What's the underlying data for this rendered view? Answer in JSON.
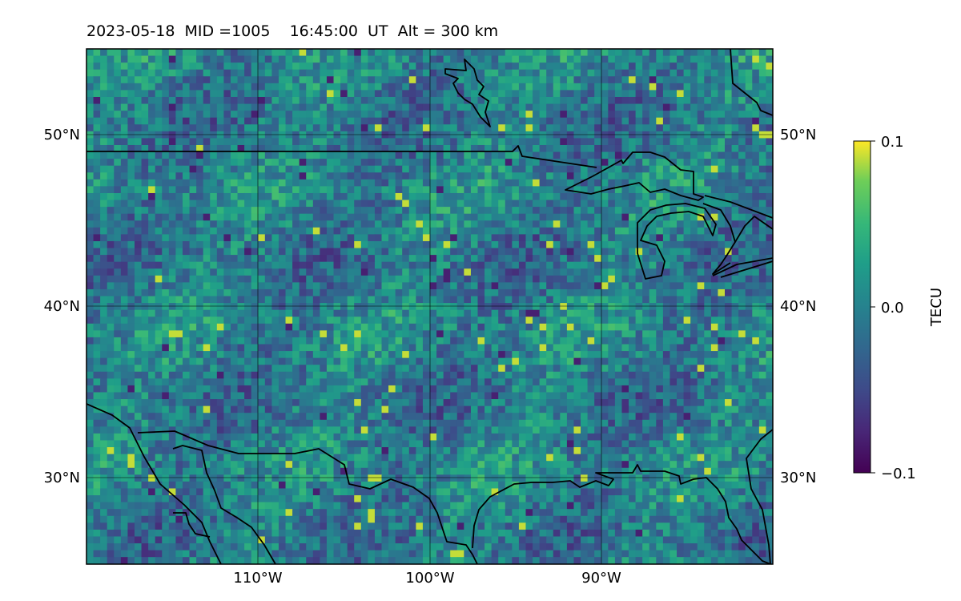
{
  "header": {
    "title": "2023-05-18  MID =1005    16:45:00  UT  Alt = 300 km"
  },
  "map": {
    "lon_range": [
      -120,
      -80
    ],
    "lat_range": [
      25,
      55
    ],
    "lat_labels_left": [
      "50°N",
      "40°N",
      "30°N"
    ],
    "lat_labels_right": [
      "50°N",
      "40°N",
      "30°N"
    ],
    "lon_labels": [
      "110°W",
      "100°W",
      "90°W"
    ],
    "gridlines": true,
    "colorbar": {
      "label": "TECU",
      "min": -0.1,
      "max": 0.1,
      "ticks": [
        "0.1",
        "0.0",
        "−0.1"
      ],
      "colormap": "viridis",
      "placement": "right"
    },
    "features": [
      "US-Canada border",
      "Great Lakes",
      "Gulf of Mexico coastline",
      "US-Mexico border"
    ]
  }
}
